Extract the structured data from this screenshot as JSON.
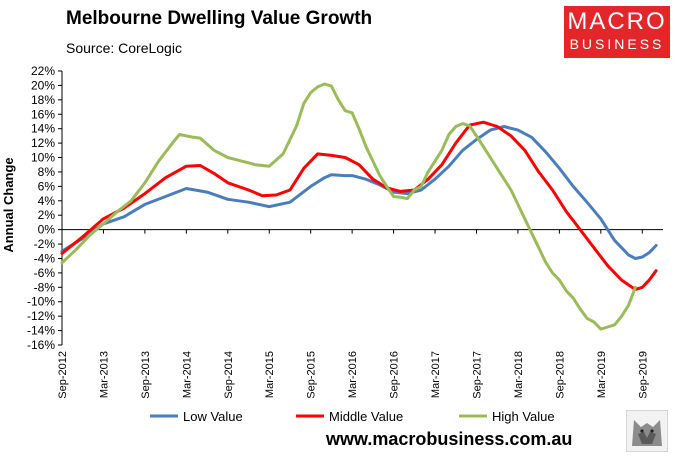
{
  "header": {
    "title": "Melbourne Dwelling Value Growth",
    "source": "Source: CoreLogic",
    "logo_line1": "MACRO",
    "logo_line2": "BUSINESS",
    "website": "www.macrobusiness.com.au"
  },
  "colors": {
    "low": "#4a7ebb",
    "middle": "#ff0000",
    "high": "#9bbb59",
    "logo": "#e3262a"
  },
  "chart_data": {
    "type": "line",
    "title": "Melbourne Dwelling Value Growth",
    "ylabel": "Annual Change",
    "xlabel": "",
    "ylim": [
      -16,
      22
    ],
    "yticks": [
      "22%",
      "20%",
      "18%",
      "16%",
      "14%",
      "12%",
      "10%",
      "8%",
      "6%",
      "4%",
      "2%",
      "0%",
      "-2%",
      "-4%",
      "-6%",
      "-8%",
      "-10%",
      "-12%",
      "-14%",
      "-16%"
    ],
    "xticks": [
      "Sep-2012",
      "Mar-2013",
      "Sep-2013",
      "Mar-2014",
      "Sep-2014",
      "Mar-2015",
      "Sep-2015",
      "Mar-2016",
      "Sep-2016",
      "Mar-2017",
      "Sep-2017",
      "Mar-2018",
      "Sep-2018",
      "Mar-2019",
      "Sep-2019"
    ],
    "x_months": [
      0,
      6,
      12,
      18,
      24,
      30,
      36,
      42,
      48,
      54,
      60,
      66,
      72,
      78,
      84
    ],
    "legend_placement": "bottom",
    "series": [
      {
        "name": "Low Value",
        "color": "#4a7ebb",
        "points": [
          [
            0,
            -3.0
          ],
          [
            3,
            -1.2
          ],
          [
            6,
            0.8
          ],
          [
            9,
            1.8
          ],
          [
            12,
            3.5
          ],
          [
            15,
            4.6
          ],
          [
            18,
            5.7
          ],
          [
            21,
            5.2
          ],
          [
            24,
            4.2
          ],
          [
            27,
            3.8
          ],
          [
            30,
            3.2
          ],
          [
            33,
            3.8
          ],
          [
            36,
            6.0
          ],
          [
            38,
            7.2
          ],
          [
            39,
            7.6
          ],
          [
            41,
            7.5
          ],
          [
            42,
            7.5
          ],
          [
            44,
            7.0
          ],
          [
            46,
            6.2
          ],
          [
            48,
            5.2
          ],
          [
            50,
            5.0
          ],
          [
            52,
            5.5
          ],
          [
            54,
            7.0
          ],
          [
            56,
            8.8
          ],
          [
            58,
            11.0
          ],
          [
            60,
            12.5
          ],
          [
            62,
            13.8
          ],
          [
            64,
            14.3
          ],
          [
            66,
            13.8
          ],
          [
            68,
            12.8
          ],
          [
            70,
            10.8
          ],
          [
            72,
            8.5
          ],
          [
            74,
            6.0
          ],
          [
            76,
            3.8
          ],
          [
            78,
            1.5
          ],
          [
            80,
            -1.5
          ],
          [
            82,
            -3.5
          ],
          [
            83,
            -4.0
          ],
          [
            84,
            -3.8
          ],
          [
            85,
            -3.2
          ],
          [
            86,
            -2.2
          ]
        ]
      },
      {
        "name": "Middle Value",
        "color": "#ff0000",
        "points": [
          [
            0,
            -3.3
          ],
          [
            3,
            -1.0
          ],
          [
            6,
            1.5
          ],
          [
            9,
            3.0
          ],
          [
            12,
            5.0
          ],
          [
            15,
            7.2
          ],
          [
            18,
            8.8
          ],
          [
            20,
            8.9
          ],
          [
            22,
            7.8
          ],
          [
            24,
            6.5
          ],
          [
            27,
            5.5
          ],
          [
            29,
            4.7
          ],
          [
            31,
            4.8
          ],
          [
            33,
            5.5
          ],
          [
            35,
            8.5
          ],
          [
            37,
            10.5
          ],
          [
            39,
            10.3
          ],
          [
            41,
            10.0
          ],
          [
            43,
            9.0
          ],
          [
            45,
            7.0
          ],
          [
            47,
            5.8
          ],
          [
            49,
            5.3
          ],
          [
            51,
            5.5
          ],
          [
            53,
            7.0
          ],
          [
            55,
            9.0
          ],
          [
            57,
            12.0
          ],
          [
            59,
            14.5
          ],
          [
            61,
            14.9
          ],
          [
            63,
            14.3
          ],
          [
            65,
            13.0
          ],
          [
            67,
            11.0
          ],
          [
            69,
            8.0
          ],
          [
            71,
            5.5
          ],
          [
            73,
            2.5
          ],
          [
            75,
            0.0
          ],
          [
            77,
            -2.5
          ],
          [
            79,
            -5.0
          ],
          [
            81,
            -7.0
          ],
          [
            83,
            -8.3
          ],
          [
            84,
            -8.0
          ],
          [
            85,
            -7.0
          ],
          [
            86,
            -5.7
          ]
        ]
      },
      {
        "name": "High Value",
        "color": "#9bbb59",
        "points": [
          [
            0,
            -4.6
          ],
          [
            2,
            -2.8
          ],
          [
            4,
            -0.8
          ],
          [
            6,
            0.8
          ],
          [
            8,
            2.5
          ],
          [
            10,
            4.0
          ],
          [
            12,
            6.5
          ],
          [
            14,
            9.5
          ],
          [
            16,
            12.0
          ],
          [
            17,
            13.2
          ],
          [
            19,
            12.8
          ],
          [
            20,
            12.7
          ],
          [
            22,
            11.0
          ],
          [
            24,
            10.0
          ],
          [
            26,
            9.5
          ],
          [
            28,
            9.0
          ],
          [
            30,
            8.8
          ],
          [
            32,
            10.5
          ],
          [
            34,
            14.5
          ],
          [
            35,
            17.5
          ],
          [
            36,
            19.0
          ],
          [
            37,
            19.8
          ],
          [
            38,
            20.2
          ],
          [
            39,
            19.9
          ],
          [
            40,
            18.0
          ],
          [
            41,
            16.5
          ],
          [
            42,
            16.2
          ],
          [
            43,
            14.0
          ],
          [
            44,
            11.5
          ],
          [
            45,
            9.5
          ],
          [
            46,
            7.5
          ],
          [
            47,
            6.0
          ],
          [
            48,
            4.6
          ],
          [
            49,
            4.5
          ],
          [
            50,
            4.3
          ],
          [
            51,
            5.5
          ],
          [
            52,
            6.0
          ],
          [
            53,
            8.0
          ],
          [
            55,
            11.0
          ],
          [
            56,
            13.2
          ],
          [
            57,
            14.3
          ],
          [
            58,
            14.7
          ],
          [
            59,
            14.4
          ],
          [
            60,
            13.0
          ],
          [
            61,
            11.5
          ],
          [
            62,
            10.0
          ],
          [
            63,
            8.5
          ],
          [
            64,
            7.0
          ],
          [
            65,
            5.5
          ],
          [
            66,
            3.5
          ],
          [
            67,
            1.5
          ],
          [
            68,
            -0.5
          ],
          [
            69,
            -2.5
          ],
          [
            70,
            -4.5
          ],
          [
            71,
            -6.0
          ],
          [
            72,
            -7.0
          ],
          [
            73,
            -8.5
          ],
          [
            74,
            -9.5
          ],
          [
            75,
            -11.0
          ],
          [
            76,
            -12.3
          ],
          [
            77,
            -12.8
          ],
          [
            78,
            -13.8
          ],
          [
            79,
            -13.5
          ],
          [
            80,
            -13.2
          ],
          [
            81,
            -12.0
          ],
          [
            82,
            -10.5
          ],
          [
            83,
            -8.0
          ]
        ]
      }
    ]
  }
}
